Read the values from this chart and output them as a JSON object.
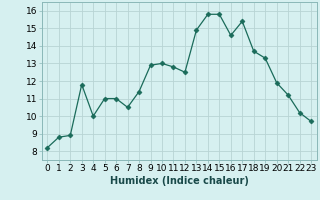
{
  "x": [
    0,
    1,
    2,
    3,
    4,
    5,
    6,
    7,
    8,
    9,
    10,
    11,
    12,
    13,
    14,
    15,
    16,
    17,
    18,
    19,
    20,
    21,
    22,
    23
  ],
  "y": [
    8.2,
    8.8,
    8.9,
    11.8,
    10.0,
    11.0,
    11.0,
    10.5,
    11.4,
    12.9,
    13.0,
    12.8,
    12.5,
    14.9,
    15.8,
    15.8,
    14.6,
    15.4,
    13.7,
    13.3,
    11.9,
    11.2,
    10.2,
    9.7
  ],
  "line_color": "#1a6b5a",
  "marker": "D",
  "markersize": 2.5,
  "bg_color": "#d6f0f0",
  "grid_color": "#b8d4d4",
  "xlabel": "Humidex (Indice chaleur)",
  "xlim": [
    -0.5,
    23.5
  ],
  "ylim": [
    7.5,
    16.5
  ],
  "yticks": [
    8,
    9,
    10,
    11,
    12,
    13,
    14,
    15,
    16
  ],
  "xticks": [
    0,
    1,
    2,
    3,
    4,
    5,
    6,
    7,
    8,
    9,
    10,
    11,
    12,
    13,
    14,
    15,
    16,
    17,
    18,
    19,
    20,
    21,
    22,
    23
  ],
  "xlabel_fontsize": 7,
  "tick_fontsize": 6.5
}
